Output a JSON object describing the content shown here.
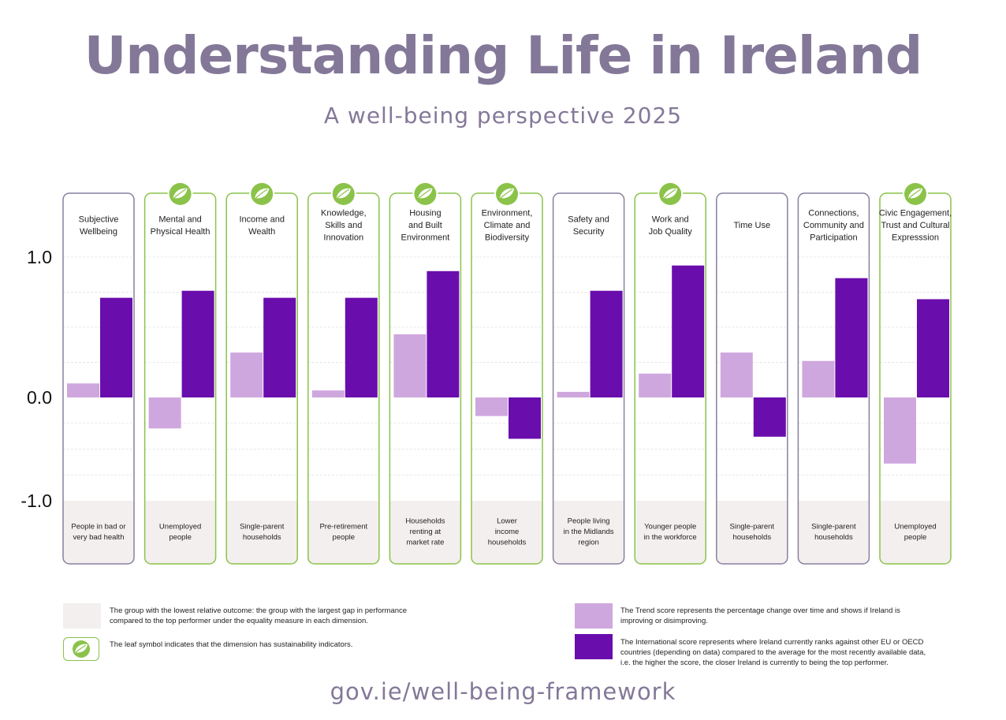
{
  "title": "Understanding Life in Ireland",
  "subtitle": "A well-being perspective 2025",
  "footer": "gov.ie/well-being-framework",
  "colors": {
    "trend": "#cfa7df",
    "international": "#6a0dad",
    "border_sustainable": "#8bc34a",
    "border_standard": "#8a7fa0",
    "group_band": "#f3efee",
    "title": "#847899"
  },
  "chart_data": {
    "type": "bar",
    "ylim": [
      -1.0,
      1.0
    ],
    "yticks": [
      "1.0",
      "0.0",
      "-1.0"
    ],
    "ytick_values": [
      1.0,
      0.0,
      -1.0
    ],
    "grid": true,
    "series": [
      {
        "name": "Trend score",
        "values": [
          0.1,
          -0.3,
          0.32,
          0.05,
          0.45,
          -0.18,
          0.04,
          0.17,
          0.32,
          0.26,
          -0.64
        ]
      },
      {
        "name": "International score",
        "values": [
          0.71,
          0.76,
          0.71,
          0.71,
          0.9,
          -0.4,
          0.76,
          0.94,
          -0.38,
          0.85,
          0.7
        ]
      }
    ],
    "dimensions": [
      {
        "label": [
          "Subjective",
          "Wellbeing"
        ],
        "group": [
          "People in bad or",
          "very bad health"
        ],
        "leaf": false
      },
      {
        "label": [
          "Mental and",
          "Physical Health"
        ],
        "group": [
          "Unemployed",
          "people"
        ],
        "leaf": true
      },
      {
        "label": [
          "Income and",
          "Wealth"
        ],
        "group": [
          "Single-parent",
          "households"
        ],
        "leaf": true
      },
      {
        "label": [
          "Knowledge,",
          "Skills and",
          "Innovation"
        ],
        "group": [
          "Pre-retirement",
          "people"
        ],
        "leaf": true
      },
      {
        "label": [
          "Housing",
          "and Built",
          "Environment"
        ],
        "group": [
          "Households",
          "renting at",
          "market rate"
        ],
        "leaf": true
      },
      {
        "label": [
          "Environment,",
          "Climate and",
          "Biodiversity"
        ],
        "group": [
          "Lower",
          "income",
          "households"
        ],
        "leaf": true
      },
      {
        "label": [
          "Safety and",
          "Security"
        ],
        "group": [
          "People living",
          "in the Midlands",
          "region"
        ],
        "leaf": false
      },
      {
        "label": [
          "Work and",
          "Job Quality"
        ],
        "group": [
          "Younger people",
          "in the workforce"
        ],
        "leaf": true
      },
      {
        "label": [
          "Time Use"
        ],
        "group": [
          "Single-parent",
          "households"
        ],
        "leaf": false
      },
      {
        "label": [
          "Connections,",
          "Community and",
          "Participation"
        ],
        "group": [
          "Single-parent",
          "households"
        ],
        "leaf": false
      },
      {
        "label": [
          "Civic Engagement,",
          "Trust and Cultural",
          "Expresssion"
        ],
        "group": [
          "Unemployed",
          "people"
        ],
        "leaf": true
      }
    ]
  },
  "legend": {
    "group_text": [
      "The group with the lowest relative outcome: the group with the largest gap in performance",
      "compared to the top performer under the equality measure in each dimension."
    ],
    "leaf_text": [
      "The leaf symbol indicates that the dimension has sustainability indicators."
    ],
    "trend_text": [
      "The Trend score represents the percentage change over time and shows if Ireland is",
      "improving or disimproving."
    ],
    "international_text": [
      "The International score represents where Ireland currently ranks against other EU or OECD",
      "countries (depending on data) compared to the average for the most recently available data,",
      "i.e. the higher the score, the closer Ireland is currently to being the top performer."
    ]
  }
}
